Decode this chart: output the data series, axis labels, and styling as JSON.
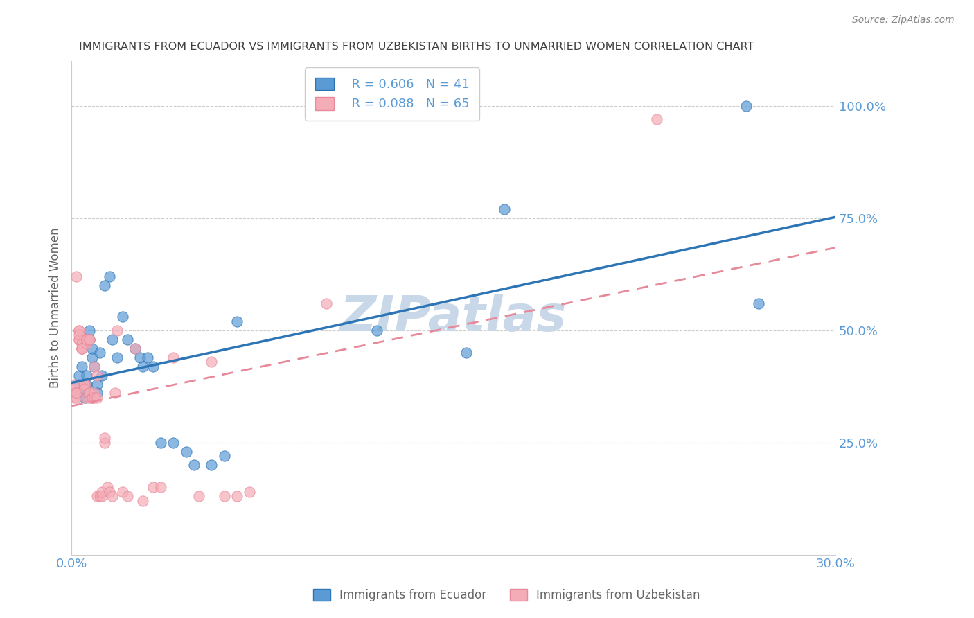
{
  "title": "IMMIGRANTS FROM ECUADOR VS IMMIGRANTS FROM UZBEKISTAN BIRTHS TO UNMARRIED WOMEN CORRELATION CHART",
  "source": "Source: ZipAtlas.com",
  "ylabel": "Births to Unmarried Women",
  "xlim": [
    0.0,
    0.3
  ],
  "ylim": [
    0.0,
    1.1
  ],
  "xticks": [
    0.0,
    0.05,
    0.1,
    0.15,
    0.2,
    0.25,
    0.3
  ],
  "xticklabels": [
    "0.0%",
    "",
    "",
    "",
    "",
    "",
    "30.0%"
  ],
  "yticks_right": [
    0.25,
    0.5,
    0.75,
    1.0
  ],
  "yticklabels_right": [
    "25.0%",
    "50.0%",
    "75.0%",
    "100.0%"
  ],
  "legend_blue_r": "R = 0.606",
  "legend_blue_n": "N = 41",
  "legend_pink_r": "R = 0.088",
  "legend_pink_n": "N = 65",
  "legend_label_blue": "Immigrants from Ecuador",
  "legend_label_pink": "Immigrants from Uzbekistan",
  "watermark": "ZIPatlas",
  "ecuador_x": [
    0.002,
    0.003,
    0.003,
    0.004,
    0.004,
    0.005,
    0.005,
    0.006,
    0.006,
    0.007,
    0.007,
    0.008,
    0.008,
    0.009,
    0.01,
    0.01,
    0.011,
    0.012,
    0.013,
    0.015,
    0.016,
    0.018,
    0.02,
    0.022,
    0.025,
    0.027,
    0.028,
    0.03,
    0.032,
    0.035,
    0.04,
    0.045,
    0.048,
    0.055,
    0.06,
    0.065,
    0.12,
    0.155,
    0.17,
    0.27,
    0.265
  ],
  "ecuador_y": [
    0.36,
    0.38,
    0.4,
    0.36,
    0.42,
    0.37,
    0.35,
    0.4,
    0.38,
    0.48,
    0.5,
    0.44,
    0.46,
    0.42,
    0.38,
    0.36,
    0.45,
    0.4,
    0.6,
    0.62,
    0.48,
    0.44,
    0.53,
    0.48,
    0.46,
    0.44,
    0.42,
    0.44,
    0.42,
    0.25,
    0.25,
    0.23,
    0.2,
    0.2,
    0.22,
    0.52,
    0.5,
    0.45,
    0.77,
    0.56,
    1.0
  ],
  "uzbekistan_x": [
    0.001,
    0.001,
    0.001,
    0.001,
    0.002,
    0.002,
    0.002,
    0.002,
    0.002,
    0.003,
    0.003,
    0.003,
    0.003,
    0.003,
    0.004,
    0.004,
    0.004,
    0.004,
    0.005,
    0.005,
    0.005,
    0.005,
    0.006,
    0.006,
    0.006,
    0.006,
    0.006,
    0.007,
    0.007,
    0.007,
    0.007,
    0.007,
    0.008,
    0.008,
    0.008,
    0.009,
    0.009,
    0.009,
    0.01,
    0.01,
    0.01,
    0.011,
    0.012,
    0.012,
    0.013,
    0.013,
    0.014,
    0.015,
    0.016,
    0.017,
    0.018,
    0.02,
    0.022,
    0.025,
    0.028,
    0.032,
    0.035,
    0.04,
    0.05,
    0.055,
    0.06,
    0.065,
    0.07,
    0.1,
    0.23
  ],
  "uzbekistan_y": [
    0.35,
    0.37,
    0.36,
    0.38,
    0.62,
    0.35,
    0.36,
    0.36,
    0.36,
    0.48,
    0.48,
    0.5,
    0.5,
    0.49,
    0.47,
    0.46,
    0.46,
    0.46,
    0.38,
    0.38,
    0.38,
    0.37,
    0.48,
    0.48,
    0.47,
    0.48,
    0.35,
    0.35,
    0.36,
    0.36,
    0.48,
    0.48,
    0.35,
    0.35,
    0.35,
    0.42,
    0.36,
    0.35,
    0.35,
    0.4,
    0.13,
    0.13,
    0.13,
    0.14,
    0.25,
    0.26,
    0.15,
    0.14,
    0.13,
    0.36,
    0.5,
    0.14,
    0.13,
    0.46,
    0.12,
    0.15,
    0.15,
    0.44,
    0.13,
    0.43,
    0.13,
    0.13,
    0.14,
    0.56,
    0.97
  ],
  "color_blue": "#5B9BD5",
  "color_pink": "#F4ACB7",
  "color_blue_line": "#2E75B6",
  "color_pink_line": "#E8899A",
  "color_title": "#404040",
  "color_axis_labels": "#5B9BD5",
  "color_watermark": "#C8D8E8",
  "background_color": "#FFFFFF",
  "grid_color": "#CCCCCC"
}
